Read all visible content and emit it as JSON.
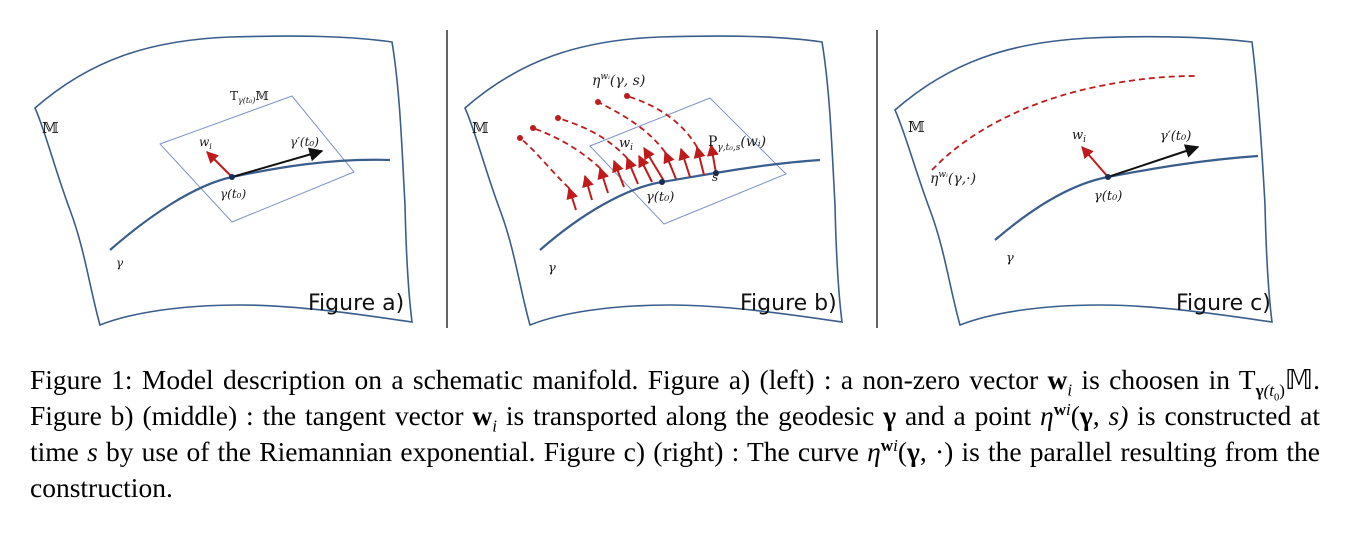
{
  "panels": [
    {
      "label": "Figure a)",
      "manifold_symbol": "𝕄",
      "tangent_space_label": "T",
      "tangent_space_sub": "γ(t₀)",
      "tangent_space_M": "𝕄",
      "vector_label": "w",
      "vector_sub": "i",
      "velocity_label": "γ′(t₀)",
      "point_label": "γ(t₀)",
      "curve_label": "γ"
    },
    {
      "label": "Figure b)",
      "manifold_symbol": "𝕄",
      "eta_label": "η",
      "eta_sup": "wᵢ",
      "eta_args": "(γ, s)",
      "vector_label": "w",
      "vector_sub": "i",
      "transport_label": "P",
      "transport_sub": "γ,t₀,s",
      "transport_args": "(wᵢ)",
      "s_label": "s",
      "point_label": "γ(t₀)",
      "curve_label": "γ"
    },
    {
      "label": "Figure c)",
      "manifold_symbol": "𝕄",
      "eta_label": "η",
      "eta_sup": "wᵢ",
      "eta_args": "(γ,·)",
      "vector_label": "w",
      "vector_sub": "i",
      "velocity_label": "γ′(t₀)",
      "point_label": "γ(t₀)",
      "curve_label": "γ"
    }
  ],
  "caption": {
    "figure_number": "Figure 1:",
    "part1": " Model description on a schematic manifold.  Figure a) (left) : a non-zero vector ",
    "w_bold": "w",
    "w_sub": "i",
    "part2": " is choosen in T",
    "T_sub_gamma": "γ",
    "T_sub_t": "(t",
    "T_sub_0": "0",
    "T_sub_close": ")",
    "M": "𝕄",
    "part3": ". Figure b) (middle) : the tangent vector ",
    "w2_bold": "w",
    "w2_sub": "i",
    "part4": " is transported along the geodesic ",
    "gamma_bold": "γ",
    "part5": " and a point ",
    "eta": "η",
    "eta_sup_bold": "w",
    "eta_sup_sub": "i",
    "eta_args_open": "(",
    "eta_gamma": "γ",
    "eta_args_rest": ", s)",
    "part6": " is constructed at time ",
    "s": "s",
    "part7": " by use of the Riemannian exponential.  Figure c) (right) : The curve ",
    "eta2": "η",
    "eta2_sup_bold": "w",
    "eta2_sup_sub": "i",
    "eta2_open": "(",
    "eta2_gamma": "γ",
    "eta2_rest": ", ·)",
    "part8": " is the parallel resulting from the construction."
  }
}
